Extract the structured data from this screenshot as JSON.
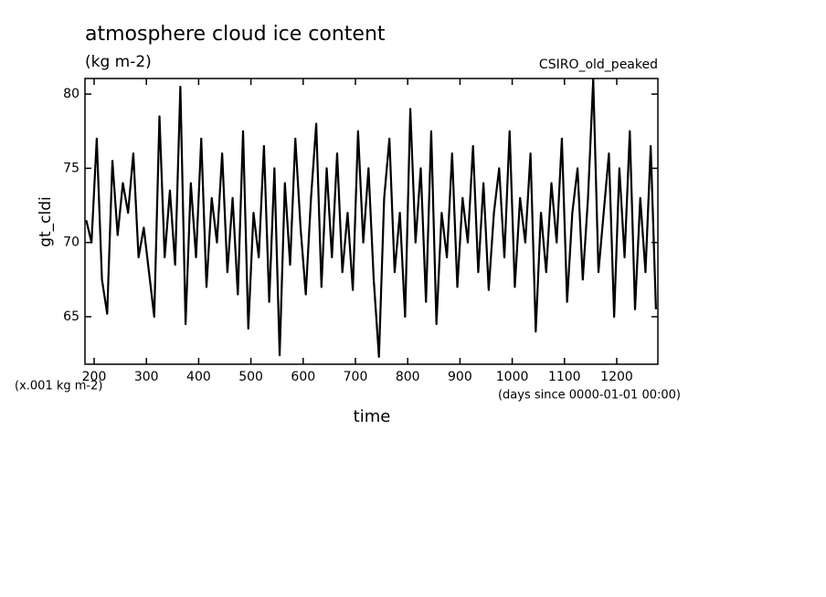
{
  "chart_data": {
    "type": "line",
    "title": "atmosphere cloud ice content",
    "subtitle": "(kg m-2)",
    "annotation": "CSIRO_old_peaked",
    "y_label": "gt_cldi",
    "y_units": "(x.001 kg m-2)",
    "x_units": "(days since 0000-01-01 00:00)",
    "x_label": "time",
    "xlim": [
      182.5,
      1278.7
    ],
    "ylim": [
      61.8,
      81.05
    ],
    "xticks": [
      200,
      300,
      400,
      500,
      600,
      700,
      800,
      900,
      1000,
      1100,
      1200
    ],
    "yticks": [
      65,
      70,
      75,
      80
    ],
    "series": [
      {
        "color": "#000000",
        "x": [
          185,
          195,
          205,
          215,
          225,
          235,
          245,
          255,
          265,
          275,
          285,
          295,
          305,
          315,
          325,
          335,
          345,
          355,
          365,
          375,
          385,
          395,
          405,
          415,
          425,
          435,
          445,
          455,
          465,
          475,
          485,
          495,
          505,
          515,
          525,
          535,
          545,
          555,
          565,
          575,
          585,
          595,
          605,
          615,
          625,
          635,
          645,
          655,
          665,
          675,
          685,
          695,
          705,
          715,
          725,
          735,
          745,
          755,
          765,
          775,
          785,
          795,
          805,
          815,
          825,
          835,
          845,
          855,
          865,
          875,
          885,
          895,
          905,
          915,
          925,
          935,
          945,
          955,
          965,
          975,
          985,
          995,
          1005,
          1015,
          1025,
          1035,
          1045,
          1055,
          1065,
          1075,
          1085,
          1095,
          1105,
          1115,
          1125,
          1135,
          1145,
          1155,
          1165,
          1175,
          1185,
          1195,
          1205,
          1215,
          1225,
          1235,
          1245,
          1255,
          1265,
          1275
        ],
        "values": [
          71.5,
          70,
          77,
          67.5,
          65.2,
          75.5,
          70.5,
          74,
          72,
          76,
          69,
          71,
          68,
          65,
          78.5,
          69,
          73.5,
          68.5,
          80.5,
          64.5,
          74,
          69,
          77,
          67,
          73,
          70,
          76,
          68,
          73,
          66.5,
          77.5,
          64.2,
          72,
          69,
          76.5,
          66,
          75,
          62.4,
          74,
          68.5,
          77,
          71,
          66.5,
          73,
          78,
          67,
          75,
          69,
          76,
          68,
          72,
          66.8,
          77.5,
          70,
          75,
          67.5,
          62.3,
          73,
          77,
          68,
          72,
          65,
          79,
          70,
          75,
          66,
          77.5,
          64.5,
          72,
          69,
          76,
          67,
          73,
          70,
          76.5,
          68,
          74,
          66.8,
          72,
          75,
          69,
          77.5,
          67,
          73,
          70,
          76,
          64,
          72,
          68,
          74,
          70,
          77,
          66,
          72,
          75,
          67.5,
          73,
          81,
          68,
          72,
          76,
          65,
          75,
          69,
          77.5,
          65.5,
          73,
          68,
          76.5,
          65.5
        ]
      }
    ]
  }
}
